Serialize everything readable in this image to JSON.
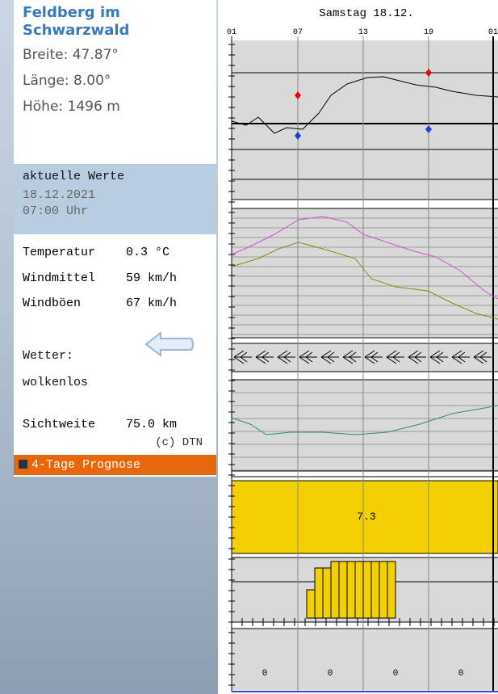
{
  "location": {
    "name": "Feldberg im Schwarzwald",
    "latitude": "Breite: 47.87°",
    "longitude": "Länge: 8.00°",
    "altitude": "Höhe: 1496 m"
  },
  "current": {
    "heading": "aktuelle Werte",
    "date": "18.12.2021",
    "time": "07:00 Uhr",
    "rows": [
      [
        "Temperatur",
        "0.3 °C"
      ],
      [
        "Windmittel",
        "59 km/h"
      ],
      [
        "Windböen",
        "67 km/h"
      ]
    ],
    "weather_label": "Wetter:",
    "weather": "wolkenlos",
    "visibility": [
      "Sichtweite",
      "75.0 km"
    ],
    "copyright": "(c) DTN",
    "link": "4-Tage Prognose"
  },
  "forecast": {
    "day": "Samstag 18.12.",
    "hours": [
      "01",
      "07",
      "13",
      "19",
      "01"
    ],
    "sunshine": "7.3",
    "precipitation": [
      "0",
      "0",
      "0",
      "0"
    ]
  }
}
